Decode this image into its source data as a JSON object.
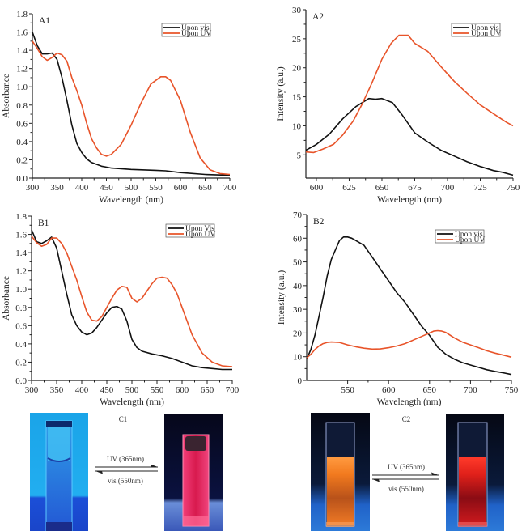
{
  "colors": {
    "upon_vis": "#111111",
    "upon_uv": "#e8542a"
  },
  "chart_data": [
    {
      "id": "A1",
      "type": "line",
      "panel_label": "A1",
      "xlabel": "Wavelength (nm)",
      "ylabel": "Absorbance",
      "xlim": [
        300,
        700
      ],
      "ylim": [
        0.0,
        1.8
      ],
      "xticks": [
        300,
        350,
        400,
        450,
        500,
        550,
        600,
        650,
        700
      ],
      "xtick_labels": [
        "300",
        "350",
        "400",
        "450",
        "500",
        "550",
        "600",
        "650",
        "700"
      ],
      "yticks": [
        0.0,
        0.2,
        0.4,
        0.6,
        0.8,
        1.0,
        1.2,
        1.4,
        1.6,
        1.8
      ],
      "ytick_labels": [
        "0.0",
        "0.2",
        "0.4",
        "0.6",
        "0.8",
        "1.0",
        "1.2",
        "1.4",
        "1.6",
        "1.8"
      ],
      "legend_position": "top-right",
      "series": [
        {
          "name": "Upon vis",
          "color_key": "upon_vis",
          "x": [
            300,
            310,
            320,
            330,
            340,
            350,
            360,
            370,
            380,
            390,
            400,
            410,
            420,
            440,
            460,
            500,
            550,
            570,
            600,
            650,
            700
          ],
          "y": [
            1.6,
            1.45,
            1.36,
            1.36,
            1.37,
            1.3,
            1.1,
            0.85,
            0.58,
            0.38,
            0.28,
            0.21,
            0.17,
            0.13,
            0.11,
            0.095,
            0.085,
            0.08,
            0.06,
            0.04,
            0.03
          ]
        },
        {
          "name": "Upon UV",
          "color_key": "upon_uv",
          "x": [
            300,
            310,
            320,
            330,
            340,
            350,
            360,
            370,
            380,
            390,
            400,
            410,
            420,
            430,
            440,
            450,
            460,
            480,
            500,
            520,
            540,
            560,
            570,
            580,
            600,
            620,
            640,
            660,
            680,
            700
          ],
          "y": [
            1.5,
            1.42,
            1.33,
            1.29,
            1.32,
            1.37,
            1.35,
            1.28,
            1.1,
            0.96,
            0.8,
            0.6,
            0.43,
            0.33,
            0.26,
            0.24,
            0.26,
            0.37,
            0.58,
            0.82,
            1.03,
            1.11,
            1.11,
            1.07,
            0.85,
            0.5,
            0.22,
            0.09,
            0.05,
            0.04
          ]
        }
      ]
    },
    {
      "id": "A2",
      "type": "line",
      "panel_label": "A2",
      "xlabel": "Wavelength (nm)",
      "ylabel": "Intensity (a.u.)",
      "xlim": [
        592,
        750
      ],
      "ylim": [
        1,
        30
      ],
      "xticks": [
        600,
        625,
        650,
        675,
        700,
        725,
        750
      ],
      "xtick_labels": [
        "600",
        "625",
        "650",
        "675",
        "700",
        "725",
        "750"
      ],
      "yticks": [
        5,
        10,
        15,
        20,
        25,
        30
      ],
      "ytick_labels": [
        "5",
        "10",
        "15",
        "20",
        "25",
        "30"
      ],
      "legend_position": "top-right",
      "series": [
        {
          "name": "Upon vis",
          "color_key": "upon_vis",
          "x": [
            592,
            600,
            610,
            620,
            630,
            640,
            645,
            650,
            658,
            665,
            675,
            685,
            695,
            705,
            715,
            725,
            735,
            742,
            750
          ],
          "y": [
            5.8,
            6.8,
            8.6,
            11.2,
            13.3,
            14.7,
            14.6,
            14.7,
            14.0,
            12.0,
            8.8,
            7.2,
            5.8,
            4.8,
            3.8,
            3.0,
            2.3,
            2.0,
            1.5
          ]
        },
        {
          "name": "Upon UV",
          "color_key": "upon_uv",
          "x": [
            592,
            598,
            605,
            613,
            620,
            628,
            635,
            642,
            650,
            657,
            663,
            670,
            675,
            685,
            695,
            705,
            715,
            725,
            735,
            745,
            750
          ],
          "y": [
            5.5,
            5.4,
            6.0,
            6.8,
            8.4,
            10.8,
            13.8,
            17.2,
            21.5,
            24.2,
            25.6,
            25.6,
            24.2,
            22.8,
            20.2,
            17.7,
            15.6,
            13.6,
            12.1,
            10.6,
            10.0
          ]
        }
      ]
    },
    {
      "id": "B1",
      "type": "line",
      "panel_label": "B1",
      "xlabel": "Wavelength (nm)",
      "ylabel": "Absorbance",
      "xlim": [
        300,
        700
      ],
      "ylim": [
        0.0,
        1.8
      ],
      "xticks": [
        300,
        350,
        400,
        450,
        500,
        550,
        600,
        650,
        700
      ],
      "xtick_labels": [
        "300",
        "350",
        "400",
        "450",
        "500",
        "550",
        "600",
        "650",
        "700"
      ],
      "yticks": [
        0.0,
        0.2,
        0.4,
        0.6,
        0.8,
        1.0,
        1.2,
        1.4,
        1.6,
        1.8
      ],
      "ytick_labels": [
        "0.0",
        "0.2",
        "0.4",
        "0.6",
        "0.8",
        "1.0",
        "1.2",
        "1.4",
        "1.6",
        "1.8"
      ],
      "legend_position": "top-right",
      "series": [
        {
          "name": "Upon Vis",
          "color_key": "upon_vis",
          "x": [
            300,
            310,
            320,
            330,
            340,
            350,
            360,
            370,
            380,
            390,
            400,
            410,
            420,
            430,
            440,
            450,
            460,
            470,
            480,
            490,
            500,
            510,
            520,
            540,
            560,
            580,
            600,
            620,
            640,
            660,
            680,
            700
          ],
          "y": [
            1.65,
            1.52,
            1.5,
            1.53,
            1.57,
            1.45,
            1.2,
            0.95,
            0.72,
            0.6,
            0.53,
            0.5,
            0.52,
            0.58,
            0.66,
            0.74,
            0.8,
            0.81,
            0.78,
            0.65,
            0.45,
            0.36,
            0.32,
            0.29,
            0.27,
            0.24,
            0.2,
            0.16,
            0.14,
            0.13,
            0.12,
            0.12
          ]
        },
        {
          "name": "Upon UV",
          "color_key": "upon_uv",
          "x": [
            300,
            310,
            320,
            330,
            340,
            350,
            360,
            370,
            380,
            390,
            400,
            410,
            420,
            430,
            440,
            450,
            460,
            470,
            480,
            490,
            500,
            510,
            520,
            530,
            540,
            550,
            560,
            570,
            580,
            590,
            600,
            620,
            640,
            660,
            680,
            700
          ],
          "y": [
            1.58,
            1.51,
            1.47,
            1.49,
            1.56,
            1.56,
            1.5,
            1.4,
            1.25,
            1.1,
            0.92,
            0.75,
            0.66,
            0.65,
            0.7,
            0.8,
            0.9,
            0.99,
            1.03,
            1.02,
            0.9,
            0.86,
            0.9,
            0.98,
            1.06,
            1.12,
            1.13,
            1.12,
            1.05,
            0.95,
            0.8,
            0.5,
            0.3,
            0.2,
            0.16,
            0.15
          ]
        }
      ]
    },
    {
      "id": "B2",
      "type": "line",
      "panel_label": "B2",
      "xlabel": "Wavelength (nm)",
      "ylabel": "Intensity (a.u.)",
      "xlim": [
        500,
        750
      ],
      "ylim": [
        0,
        70
      ],
      "xticks": [
        550,
        600,
        650,
        700,
        750
      ],
      "xtick_labels": [
        "550",
        "600",
        "650",
        "700",
        "750"
      ],
      "yticks": [
        0,
        10,
        20,
        30,
        40,
        50,
        60,
        70
      ],
      "ytick_labels": [
        "0",
        "10",
        "20",
        "30",
        "40",
        "50",
        "60",
        "70"
      ],
      "legend_position": "top-right",
      "series": [
        {
          "name": "Upon vis",
          "color_key": "upon_vis",
          "x": [
            500,
            505,
            510,
            515,
            520,
            525,
            530,
            535,
            540,
            545,
            550,
            555,
            560,
            570,
            580,
            590,
            600,
            610,
            620,
            630,
            640,
            650,
            660,
            670,
            680,
            690,
            700,
            710,
            720,
            730,
            740,
            750
          ],
          "y": [
            9,
            13,
            19,
            27,
            35,
            44,
            51,
            55,
            59,
            60.5,
            60.5,
            60,
            59,
            57,
            52,
            47,
            42,
            37,
            33,
            28,
            23,
            19,
            14,
            11,
            9,
            7.5,
            6.5,
            5.5,
            4.5,
            3.8,
            3.2,
            2.5
          ]
        },
        {
          "name": "Upon UV",
          "color_key": "upon_uv",
          "x": [
            500,
            505,
            510,
            515,
            520,
            525,
            530,
            540,
            550,
            560,
            570,
            580,
            590,
            600,
            610,
            620,
            630,
            640,
            650,
            655,
            660,
            665,
            670,
            680,
            690,
            700,
            710,
            720,
            730,
            740,
            750
          ],
          "y": [
            9.5,
            11,
            13,
            14.5,
            15.5,
            16,
            16.2,
            16,
            15,
            14.2,
            13.6,
            13.2,
            13.3,
            13.8,
            14.5,
            15.5,
            17,
            18.5,
            20,
            20.8,
            21,
            20.8,
            20.2,
            18,
            16.2,
            15,
            13.8,
            12.5,
            11.5,
            10.7,
            9.8
          ]
        }
      ]
    }
  ],
  "photos": {
    "c1": {
      "label": "C1",
      "arrow_top": "UV (365nm)",
      "arrow_bottom": "vis (550nm)"
    },
    "c2": {
      "label": "C2",
      "arrow_top": "UV (365nm)",
      "arrow_bottom": "vis (550nm)"
    }
  }
}
